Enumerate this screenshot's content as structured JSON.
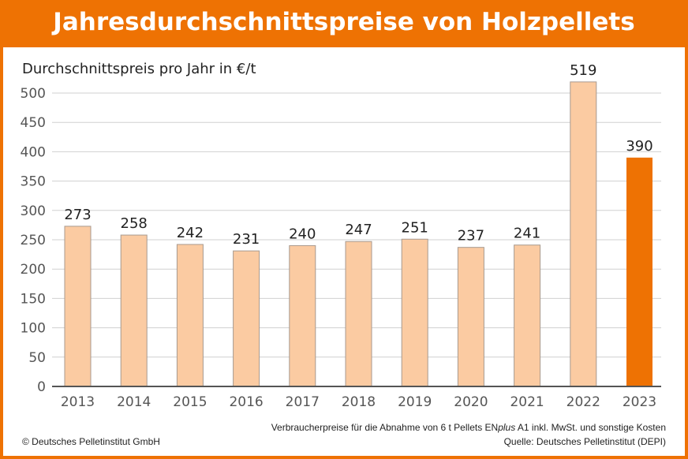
{
  "chart_data": {
    "type": "bar",
    "title": "Jahresdurchschnittspreise von Holzpellets",
    "ylabel": "Durchschnittspreis pro Jahr in €/t",
    "xlabel": "",
    "categories": [
      "2013",
      "2014",
      "2015",
      "2016",
      "2017",
      "2018",
      "2019",
      "2020",
      "2021",
      "2022",
      "2023"
    ],
    "values": [
      273,
      258,
      242,
      231,
      240,
      247,
      251,
      237,
      241,
      519,
      390
    ],
    "ylim": [
      0,
      500
    ],
    "yticks": [
      0,
      50,
      100,
      150,
      200,
      250,
      300,
      350,
      400,
      450,
      500
    ],
    "grid": true,
    "colors": {
      "default": "#fbcba2",
      "highlight": "#ee7203",
      "bar_border": "#a89a8f",
      "grid": "#d0d0d0",
      "axis": "#555555"
    },
    "highlight_index": 10
  },
  "footer": {
    "copyright": "© Deutsches Pelletinstitut GmbH",
    "note_prefix": "Verbraucherpreise für die Abnahme von 6 t Pellets EN",
    "note_italic": "plus",
    "note_suffix": " A1 inkl. MwSt. und sonstige Kosten",
    "source": "Quelle: Deutsches Pelletinstitut (DEPI)"
  }
}
